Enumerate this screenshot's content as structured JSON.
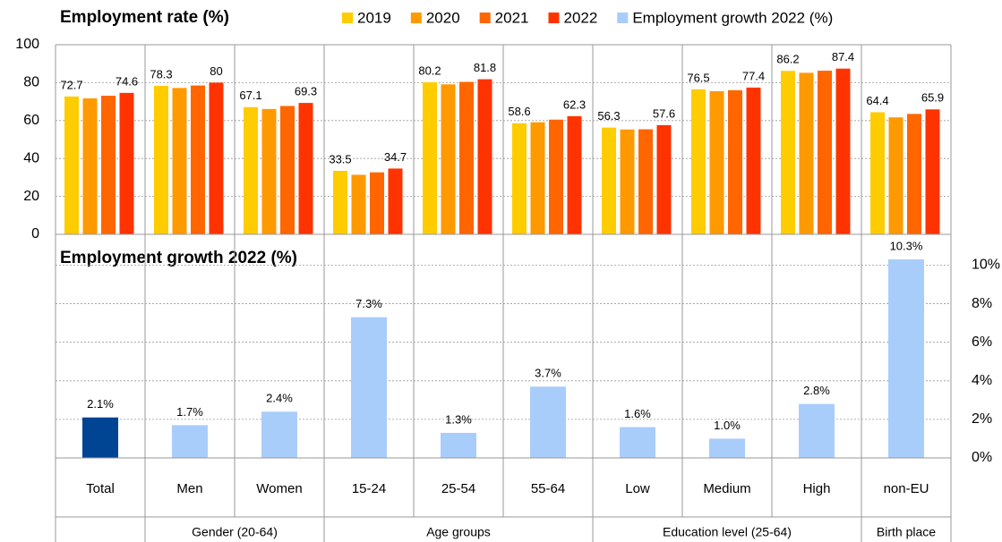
{
  "chart_data": [
    {
      "type": "bar",
      "title": "Employment rate (%)",
      "categories": [
        "Total",
        "Men",
        "Women",
        "15-24",
        "25-54",
        "55-64",
        "Low",
        "Medium",
        "High",
        "non-EU"
      ],
      "series": [
        {
          "name": "2019",
          "color": "#ffcc00",
          "show_labels": true,
          "values": [
            72.7,
            78.3,
            67.1,
            33.5,
            80.2,
            58.6,
            56.3,
            76.5,
            86.2,
            64.4
          ]
        },
        {
          "name": "2020",
          "color": "#ff9900",
          "show_labels": false,
          "values": [
            71.7,
            77.2,
            66.1,
            31.4,
            79.1,
            59.1,
            55.3,
            75.5,
            85.2,
            61.7
          ]
        },
        {
          "name": "2021",
          "color": "#ff6600",
          "show_labels": false,
          "values": [
            73.1,
            78.5,
            67.7,
            32.7,
            80.4,
            60.5,
            55.4,
            76.0,
            86.3,
            63.5
          ]
        },
        {
          "name": "2022",
          "color": "#ff3300",
          "show_labels": true,
          "values": [
            74.6,
            80,
            69.3,
            34.7,
            81.8,
            62.3,
            57.6,
            77.4,
            87.4,
            65.9
          ]
        }
      ],
      "ylim": [
        0,
        100
      ],
      "yticks": [
        0,
        20,
        40,
        60,
        80,
        100
      ],
      "grid": true
    },
    {
      "type": "bar",
      "title": "Employment growth 2022 (%)",
      "series": [
        {
          "name": "Employment growth 2022 (%)",
          "color": "#a9cdfa",
          "colors": [
            "#004494",
            "#a9cdfa",
            "#a9cdfa",
            "#a9cdfa",
            "#a9cdfa",
            "#a9cdfa",
            "#a9cdfa",
            "#a9cdfa",
            "#a9cdfa",
            "#a9cdfa"
          ],
          "values": [
            2.1,
            1.7,
            2.4,
            7.3,
            1.3,
            3.7,
            1.6,
            1.0,
            2.8,
            10.3
          ],
          "value_labels": [
            "2.1%",
            "1.7%",
            "2.4%",
            "7.3%",
            "1.3%",
            "3.7%",
            "1.6%",
            "1.0%",
            "2.8%",
            "10.3%"
          ]
        }
      ],
      "y2lim": [
        0,
        11.6
      ],
      "y2ticks": [
        {
          "value": 0,
          "label": "0%"
        },
        {
          "value": 2,
          "label": "2%"
        },
        {
          "value": 4,
          "label": "4%"
        },
        {
          "value": 6,
          "label": "6%"
        },
        {
          "value": 8,
          "label": "8%"
        },
        {
          "value": 10,
          "label": "10%"
        }
      ],
      "grid": true,
      "groups": [
        {
          "label": "Gender (20-64)",
          "from": 1,
          "to": 2
        },
        {
          "label": "Age groups",
          "from": 3,
          "to": 5
        },
        {
          "label": "Education level (25-64)",
          "from": 6,
          "to": 8
        },
        {
          "label": "Birth place",
          "from": 9,
          "to": 9
        }
      ]
    }
  ]
}
